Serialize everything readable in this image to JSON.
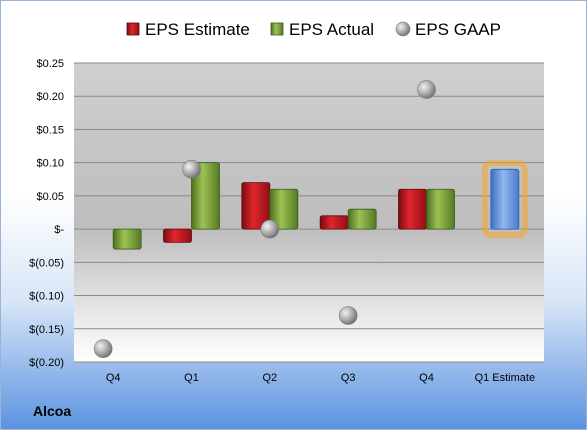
{
  "company": "Alcoa",
  "chart_data": {
    "type": "bar",
    "categories": [
      "Q4",
      "Q1",
      "Q2",
      "Q3",
      "Q4",
      "Q1 Estimate"
    ],
    "series": [
      {
        "name": "EPS Estimate",
        "values": [
          null,
          -0.02,
          0.07,
          0.02,
          0.06,
          null
        ],
        "color": "#c0161b"
      },
      {
        "name": "EPS Actual",
        "values": [
          -0.03,
          0.1,
          0.06,
          0.03,
          0.06,
          null
        ],
        "color": "#7aa33a"
      },
      {
        "name": "EPS GAAP",
        "values": [
          -0.18,
          0.09,
          0.0,
          -0.13,
          0.21,
          null
        ],
        "color": "#a6a6a6",
        "marker": "sphere"
      }
    ],
    "forecast": {
      "category": "Q1 Estimate",
      "value": 0.09,
      "color": "#6f9fe0",
      "highlight": "#f5a623"
    },
    "ylim": [
      -0.2,
      0.25
    ],
    "yticks": [
      {
        "value": 0.25,
        "label": "$0.25"
      },
      {
        "value": 0.2,
        "label": "$0.20"
      },
      {
        "value": 0.15,
        "label": "$0.15"
      },
      {
        "value": 0.1,
        "label": "$0.10"
      },
      {
        "value": 0.05,
        "label": "$0.05"
      },
      {
        "value": 0.0,
        "label": "$-"
      },
      {
        "value": -0.05,
        "label": "$(0.05)"
      },
      {
        "value": -0.1,
        "label": "$(0.10)"
      },
      {
        "value": -0.15,
        "label": "$(0.15)"
      },
      {
        "value": -0.2,
        "label": "$(0.20)"
      }
    ],
    "legend_position": "top",
    "grid": true
  }
}
